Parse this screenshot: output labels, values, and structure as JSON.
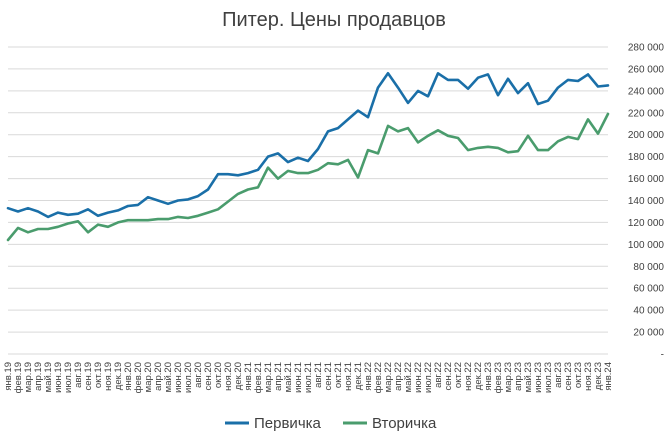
{
  "chart_data": {
    "type": "line",
    "title": "Питер. Цены продавцов",
    "xlabel": "",
    "ylabel": "",
    "ylim": [
      0,
      280000
    ],
    "y_ticks": [
      0,
      20000,
      40000,
      60000,
      80000,
      100000,
      120000,
      140000,
      160000,
      180000,
      200000,
      220000,
      240000,
      260000,
      280000
    ],
    "y_tick_labels": [
      "-",
      "20 000",
      "40 000",
      "60 000",
      "80 000",
      "100 000",
      "120 000",
      "140 000",
      "160 000",
      "180 000",
      "200 000",
      "220 000",
      "240 000",
      "260 000",
      "280 000"
    ],
    "y_axis_side": "right",
    "grid": true,
    "legend_position": "bottom",
    "categories": [
      "янв.19",
      "фев.19",
      "мар.19",
      "апр.19",
      "май.19",
      "июн.19",
      "июл.19",
      "авг.19",
      "сен.19",
      "окт.19",
      "ноя.19",
      "дек.19",
      "янв.20",
      "фев.20",
      "мар.20",
      "апр.20",
      "май.20",
      "июн.20",
      "июл.20",
      "авг.20",
      "сен.20",
      "окт.20",
      "ноя.20",
      "дек.20",
      "янв.21",
      "фев.21",
      "мар.21",
      "апр.21",
      "май.21",
      "июн.21",
      "июл.21",
      "авг.21",
      "сен.21",
      "окт.21",
      "ноя.21",
      "дек.21",
      "янв.22",
      "фев.22",
      "мар.22",
      "апр.22",
      "май.22",
      "июн.22",
      "июл.22",
      "авг.22",
      "сен.22",
      "окт.22",
      "ноя.22",
      "дек.22",
      "янв.23",
      "фев.23",
      "мар.23",
      "апр.23",
      "май.23",
      "июн.23",
      "июл.23",
      "авг.23",
      "сен.23",
      "окт.23",
      "ноя.23",
      "дек.23",
      "янв.24"
    ],
    "series": [
      {
        "name": "Первичка",
        "color": "#1a6fa8",
        "values": [
          133000,
          130000,
          133000,
          130000,
          125000,
          129000,
          127000,
          128000,
          132000,
          126000,
          129000,
          131000,
          135000,
          136000,
          143000,
          140000,
          137000,
          140000,
          141000,
          144000,
          150000,
          164000,
          164000,
          163000,
          165000,
          168000,
          180000,
          183000,
          175000,
          179000,
          176000,
          187000,
          203000,
          206000,
          214000,
          222000,
          216000,
          243000,
          256000,
          243000,
          229000,
          240000,
          235000,
          256000,
          250000,
          250000,
          242000,
          252000,
          255000,
          236000,
          251000,
          238000,
          247000,
          228000,
          231000,
          243000,
          250000,
          249000,
          255000,
          244000,
          245000
        ]
      },
      {
        "name": "Вторичка",
        "color": "#4a9c6d",
        "values": [
          104000,
          115000,
          111000,
          114000,
          114000,
          116000,
          119000,
          121000,
          111000,
          118000,
          116000,
          120000,
          122000,
          122000,
          122000,
          123000,
          123000,
          125000,
          124000,
          126000,
          129000,
          132000,
          139000,
          146000,
          150000,
          152000,
          170000,
          160000,
          167000,
          165000,
          165000,
          168000,
          174000,
          173000,
          177000,
          161000,
          186000,
          183000,
          208000,
          203000,
          206000,
          193000,
          199000,
          204000,
          199000,
          197000,
          186000,
          188000,
          189000,
          188000,
          184000,
          185000,
          199000,
          186000,
          186000,
          194000,
          198000,
          196000,
          214000,
          201000,
          219000
        ]
      }
    ]
  }
}
